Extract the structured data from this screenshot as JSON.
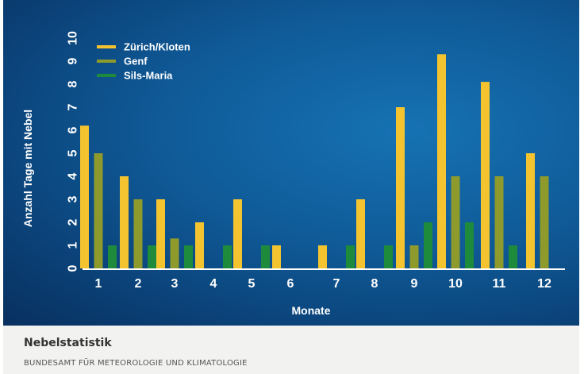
{
  "chart_data": {
    "type": "bar",
    "xlabel": "Monate",
    "ylabel": "Anzahl Tage mit Nebel",
    "categories": [
      "1",
      "2",
      "3",
      "4",
      "5",
      "6",
      "7",
      "8",
      "9",
      "10",
      "11",
      "12"
    ],
    "yticks": [
      "0",
      "1",
      "2",
      "3",
      "4",
      "5",
      "6",
      "7",
      "8",
      "9",
      "10"
    ],
    "ylim": [
      0,
      10
    ],
    "legend_position": "top-left",
    "grid": false,
    "series": [
      {
        "name": "Zürich/Kloten",
        "color": "#f4c430",
        "values": [
          6.2,
          4,
          3,
          2,
          3,
          1,
          1,
          3,
          7,
          9.3,
          8.1,
          5
        ]
      },
      {
        "name": "Genf",
        "color": "#8f9a2c",
        "values": [
          5,
          3,
          1.3,
          0,
          0,
          0,
          0,
          0,
          1,
          4,
          4,
          4
        ]
      },
      {
        "name": "Sils-Maria",
        "color": "#1e8a3c",
        "values": [
          1,
          1,
          1,
          1,
          1,
          0,
          1,
          1,
          2,
          2,
          1,
          0
        ]
      }
    ]
  },
  "caption": {
    "title": "Nebelstatistik",
    "source": "BUNDESAMT FÜR METEOROLOGIE UND KLIMATOLOGIE"
  }
}
